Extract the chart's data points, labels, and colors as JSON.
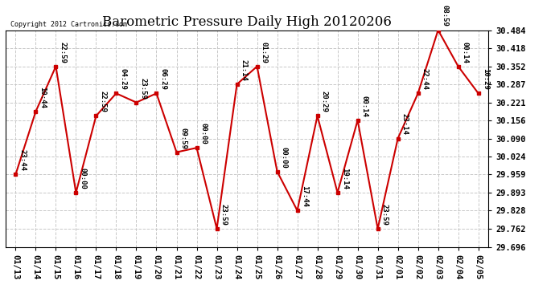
{
  "title": "Barometric Pressure Daily High 20120206",
  "copyright": "Copyright 2012 Cartronics.com",
  "x_labels": [
    "01/13",
    "01/14",
    "01/15",
    "01/16",
    "01/17",
    "01/18",
    "01/19",
    "01/20",
    "01/21",
    "01/22",
    "01/23",
    "01/24",
    "01/25",
    "01/26",
    "01/27",
    "01/28",
    "01/29",
    "01/30",
    "01/31",
    "02/01",
    "02/02",
    "02/03",
    "02/04",
    "02/05"
  ],
  "y_values": [
    29.959,
    30.188,
    30.352,
    29.893,
    30.172,
    30.254,
    30.221,
    30.254,
    30.04,
    30.056,
    29.762,
    30.287,
    30.352,
    29.97,
    29.828,
    30.172,
    29.893,
    30.156,
    29.762,
    30.09,
    30.254,
    30.484,
    30.352,
    30.254
  ],
  "point_labels": [
    "23:44",
    "10:44",
    "22:59",
    "00:00",
    "22:59",
    "04:29",
    "23:59",
    "06:29",
    "09:59",
    "00:00",
    "23:59",
    "21:14",
    "01:29",
    "00:00",
    "17:44",
    "20:29",
    "19:14",
    "00:14",
    "23:59",
    "23:14",
    "22:44",
    "08:59",
    "00:14",
    "10:29"
  ],
  "y_min": 29.696,
  "y_max": 30.484,
  "y_ticks": [
    29.696,
    29.762,
    29.828,
    29.893,
    29.959,
    30.024,
    30.09,
    30.156,
    30.221,
    30.287,
    30.352,
    30.418,
    30.484
  ],
  "line_color": "#cc0000",
  "marker_color": "#cc0000",
  "bg_color": "#ffffff",
  "grid_color": "#c8c8c8",
  "title_fontsize": 12,
  "label_fontsize": 6.5,
  "tick_fontsize": 7.5
}
